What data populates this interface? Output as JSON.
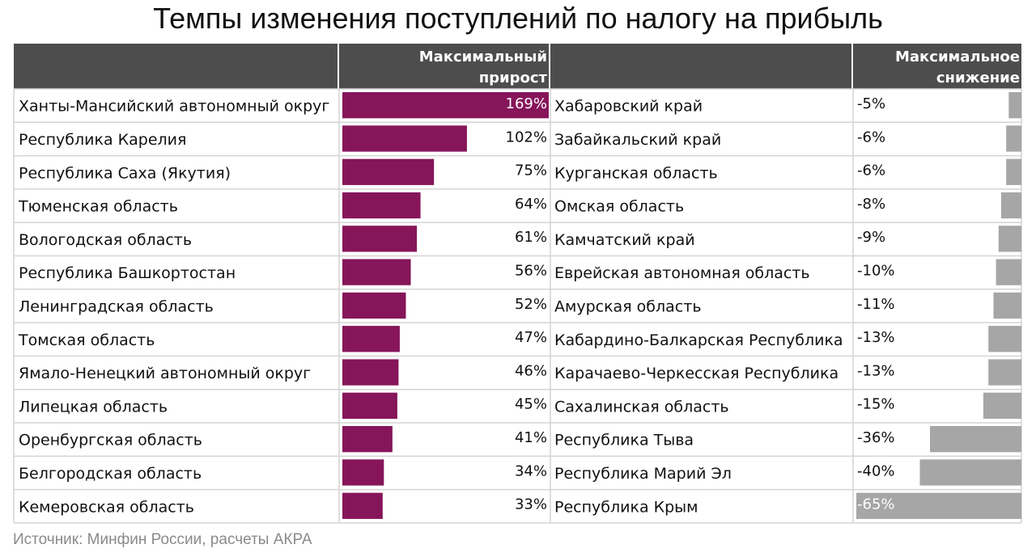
{
  "title": "Темпы изменения поступлений по налогу на прибыль",
  "source": "Источник: Минфин России, расчеты АКРА",
  "colors": {
    "header_bg": "#4d4d4d",
    "header_text": "#ffffff",
    "growth_bar": "#86155a",
    "decline_bar": "#a6a6a6",
    "grid": "#d4d4d4",
    "text": "#111111"
  },
  "chart_data": [
    {
      "type": "bar",
      "title": "Максимальный прирост",
      "header_lines": [
        "Максимальный",
        "прирост"
      ],
      "categories": [
        "Ханты-Мансийский автономный округ",
        "Республика Карелия",
        "Республика Саха (Якутия)",
        "Тюменская область",
        "Вологодская область",
        "Республика Башкортостан",
        "Ленинградская область",
        "Томская область",
        "Ямало-Ненецкий автономный округ",
        "Липецкая область",
        "Оренбургская область",
        "Белгородская область",
        "Кемеровская область"
      ],
      "values": [
        169,
        102,
        75,
        64,
        61,
        56,
        52,
        47,
        46,
        45,
        41,
        34,
        33
      ],
      "labels": [
        "169%",
        "102%",
        "75%",
        "64%",
        "61%",
        "56%",
        "52%",
        "47%",
        "46%",
        "45%",
        "41%",
        "34%",
        "33%"
      ],
      "unit": "%",
      "xlim": [
        0,
        169
      ]
    },
    {
      "type": "bar",
      "title": "Максимальное снижение",
      "header_lines": [
        "Максимальное",
        "снижение"
      ],
      "categories": [
        "Хабаровский край",
        "Забайкальский край",
        "Курганская область",
        "Омская область",
        "Камчатский край",
        "Еврейская автономная область",
        "Амурская область",
        "Кабардино-Балкарская Республика",
        "Карачаево-Черкесская Республика",
        "Сахалинская область",
        "Республика Тыва",
        "Республика Марий Эл",
        "Республика Крым"
      ],
      "values": [
        -5,
        -6,
        -6,
        -8,
        -9,
        -10,
        -11,
        -13,
        -13,
        -15,
        -36,
        -40,
        -65
      ],
      "labels": [
        "-5%",
        "-6%",
        "-6%",
        "-8%",
        "-9%",
        "-10%",
        "-11%",
        "-13%",
        "-13%",
        "-15%",
        "-36%",
        "-40%",
        "-65%"
      ],
      "unit": "%",
      "xlim": [
        -65,
        0
      ]
    }
  ]
}
